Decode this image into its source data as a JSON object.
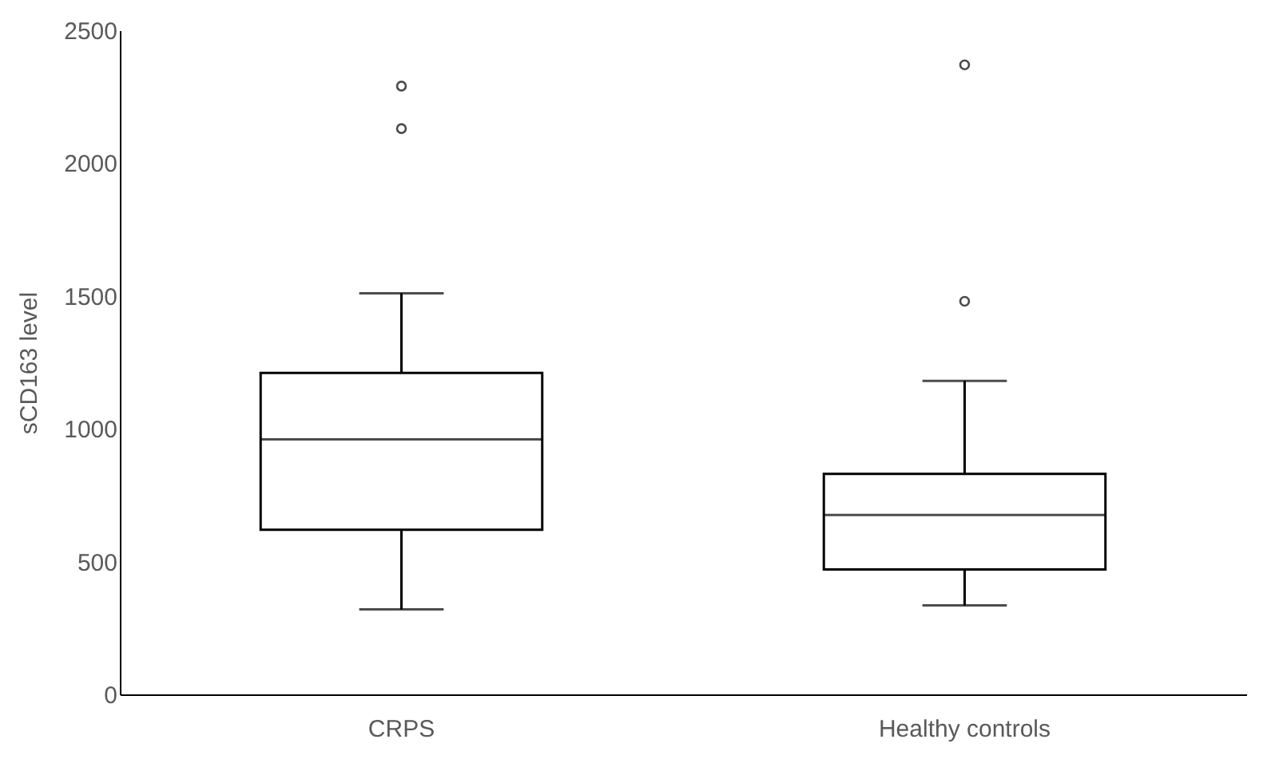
{
  "chart_data": {
    "type": "box",
    "ylabel": "sCD163 level",
    "categories": [
      "CRPS",
      "Healthy controls"
    ],
    "boxes": [
      {
        "low": 320,
        "q1": 620,
        "median": 960,
        "q3": 1210,
        "high": 1510,
        "outliers": [
          2130,
          2290
        ]
      },
      {
        "low": 335,
        "q1": 470,
        "median": 675,
        "q3": 830,
        "high": 1180,
        "outliers": [
          1480,
          2370
        ]
      }
    ],
    "ylim": [
      0,
      2500
    ],
    "yticks": [
      0,
      500,
      1000,
      1500,
      2000,
      2500
    ],
    "grid": false
  }
}
